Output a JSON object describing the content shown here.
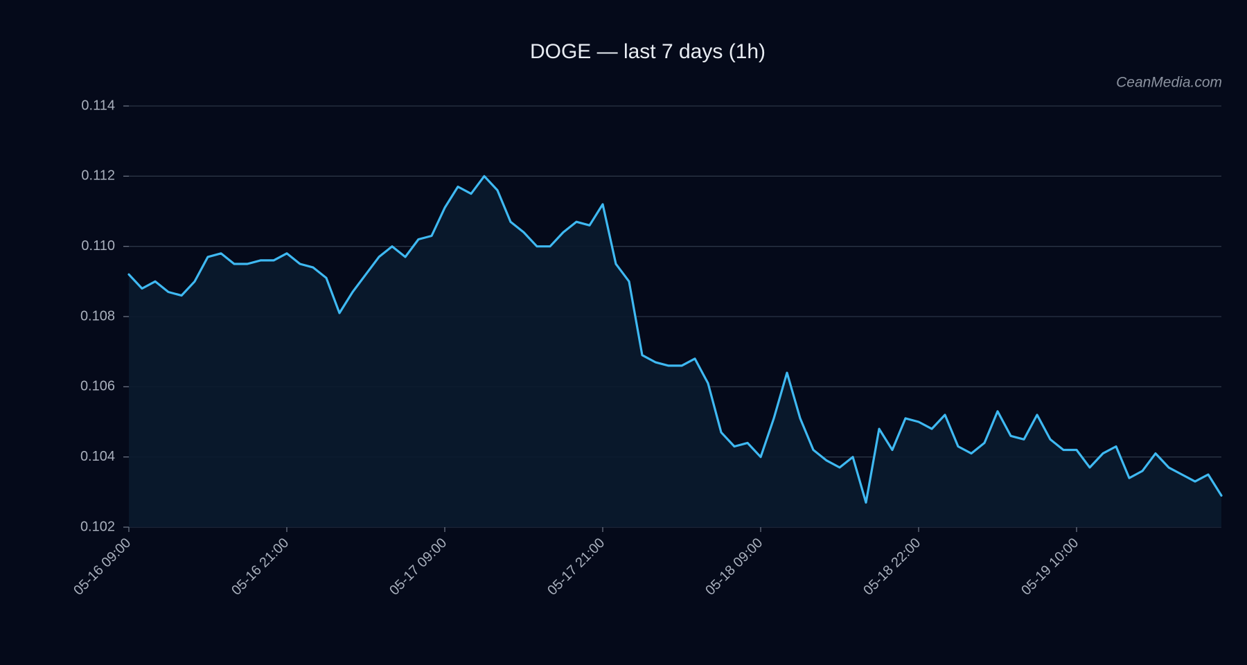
{
  "chart_data": {
    "type": "line",
    "title": "DOGE — last 7 days (1h)",
    "watermark": "CeanMedia.com",
    "categories": [
      "05-16 09:00",
      null,
      null,
      null,
      null,
      null,
      null,
      null,
      null,
      null,
      null,
      null,
      "05-16 21:00",
      null,
      null,
      null,
      null,
      null,
      null,
      null,
      null,
      null,
      null,
      null,
      "05-17 09:00",
      null,
      null,
      null,
      null,
      null,
      null,
      null,
      null,
      null,
      null,
      null,
      "05-17 21:00",
      null,
      null,
      null,
      null,
      null,
      null,
      null,
      null,
      null,
      null,
      null,
      "05-18 09:00",
      null,
      null,
      null,
      null,
      null,
      null,
      null,
      null,
      null,
      null,
      null,
      "05-18 22:00",
      null,
      null,
      null,
      null,
      null,
      null,
      null,
      null,
      null,
      null,
      null,
      "05-19 10:00",
      null,
      null,
      null,
      null,
      null,
      null,
      null,
      null,
      null,
      null,
      null
    ],
    "series": [
      {
        "name": "DOGE",
        "color": "#3fb9f2",
        "values": [
          0.1092,
          0.1088,
          0.109,
          0.1087,
          0.1086,
          0.109,
          0.1097,
          0.1098,
          0.1095,
          0.1095,
          0.1096,
          0.1096,
          0.1098,
          0.1095,
          0.1094,
          0.1091,
          0.1081,
          0.1087,
          0.1092,
          0.1097,
          0.11,
          0.1097,
          0.1102,
          0.1103,
          0.1111,
          0.1117,
          0.1115,
          0.112,
          0.1116,
          0.1107,
          0.1104,
          0.11,
          0.11,
          0.1104,
          0.1107,
          0.1106,
          0.1112,
          0.1095,
          0.109,
          0.1069,
          0.1067,
          0.1066,
          0.1066,
          0.1068,
          0.1061,
          0.1047,
          0.1043,
          0.1044,
          0.104,
          0.1051,
          0.1064,
          0.1051,
          0.1042,
          0.1039,
          0.1037,
          0.104,
          0.1027,
          0.1048,
          0.1042,
          0.1051,
          0.105,
          0.1048,
          0.1052,
          0.1043,
          0.1041,
          0.1044,
          0.1053,
          0.1046,
          0.1045,
          0.1052,
          0.1045,
          0.1042,
          0.1042,
          0.1037,
          0.1041,
          0.1043,
          0.1034,
          0.1036,
          0.1041,
          0.1037,
          0.1035,
          0.1033,
          0.1035,
          0.1029
        ]
      }
    ],
    "ylim": [
      0.102,
      0.114
    ],
    "yticks": [
      0.102,
      0.104,
      0.106,
      0.108,
      {
        "value": 0.11,
        "label": "0.110"
      },
      0.112,
      0.114
    ],
    "grid": true
  }
}
